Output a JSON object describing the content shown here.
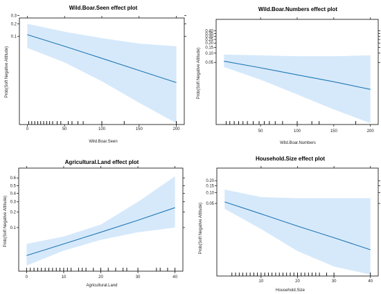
{
  "chart_data": [
    {
      "type": "line",
      "title": "Wild.Boar.Seen effect plot",
      "xlabel": "Wild.Boar.Seen",
      "ylabel": "Prob(Soft Negative Attitude)",
      "xlim": [
        -5,
        205
      ],
      "x_ticks": [
        0,
        50,
        100,
        150,
        200
      ],
      "y_scale": "logit",
      "ylim": [
        0.0004,
        0.25
      ],
      "y_ticks": [
        0.1,
        0.2,
        0.3
      ],
      "y_tick_labels": [
        "0.1",
        "0.2",
        "0.3"
      ],
      "series": [
        {
          "x": [
            0,
            50,
            100,
            150,
            200
          ],
          "y": [
            0.11,
            0.055,
            0.026,
            0.012,
            0.0055
          ],
          "lower": [
            0.05,
            0.02,
            0.006,
            0.0015,
            0.0004
          ],
          "upper": [
            0.2,
            0.13,
            0.09,
            0.065,
            0.055
          ]
        }
      ],
      "rug": [
        2,
        6,
        10,
        14,
        18,
        22,
        26,
        30,
        34,
        40,
        45,
        55,
        60,
        68,
        75,
        100,
        130,
        200
      ],
      "colors": {
        "line": "#1f77b4",
        "band": "#d6e9fb"
      }
    },
    {
      "type": "line",
      "title": "Wild.Boar.Numbers effect plot",
      "xlabel": "Wild.Boar.Numbers",
      "ylabel": "Prob(Soft Negative Attitude)",
      "xlim": [
        -5,
        205
      ],
      "x_ticks": [
        50,
        100,
        150,
        200
      ],
      "y_scale": "logit",
      "ylim": [
        0.0004,
        0.6
      ],
      "y_ticks": [
        0.05,
        0.1,
        0.15,
        0.2,
        0.25,
        0.3,
        0.35,
        0.4
      ],
      "y_tick_labels": [
        "0.05",
        "0.10",
        "0.15",
        "0.20",
        "0.25",
        "0.30",
        "0.35",
        "0.40"
      ],
      "series": [
        {
          "x": [
            0,
            50,
            100,
            150,
            200
          ],
          "y": [
            0.055,
            0.033,
            0.019,
            0.011,
            0.006
          ],
          "lower": [
            0.035,
            0.013,
            0.004,
            0.0012,
            0.0004
          ],
          "upper": [
            0.09,
            0.085,
            0.08,
            0.08,
            0.085
          ]
        }
      ],
      "rug": [
        3,
        8,
        14,
        20,
        26,
        32,
        40,
        48,
        55,
        62,
        70,
        80,
        100,
        120,
        130,
        180
      ],
      "colors": {
        "line": "#1f77b4",
        "band": "#d6e9fb"
      }
    },
    {
      "type": "line",
      "title": "Agricultural.Land effect plot",
      "xlabel": "Agricultural.Land",
      "ylabel": "Prob(Soft Negative Attitude)",
      "xlim": [
        -1,
        41
      ],
      "x_ticks": [
        0,
        10,
        20,
        30,
        40
      ],
      "y_scale": "logit",
      "ylim": [
        0.012,
        0.7
      ],
      "y_ticks": [
        0.1,
        0.2,
        0.3,
        0.4,
        0.5,
        0.6
      ],
      "y_tick_labels": [
        "0.1",
        "0.2",
        "0.3",
        "0.4",
        "0.5",
        "0.6"
      ],
      "series": [
        {
          "x": [
            0,
            10,
            20,
            30,
            40
          ],
          "y": [
            0.025,
            0.045,
            0.08,
            0.14,
            0.24
          ],
          "lower": [
            0.015,
            0.032,
            0.055,
            0.08,
            0.1
          ],
          "upper": [
            0.045,
            0.065,
            0.115,
            0.3,
            0.62
          ]
        }
      ],
      "rug": [
        0,
        1,
        2,
        3,
        4,
        5,
        6,
        7,
        8,
        9,
        10,
        11,
        12,
        14,
        15,
        16,
        18,
        20,
        22,
        24,
        26,
        27,
        30,
        35,
        36,
        38,
        40
      ],
      "colors": {
        "line": "#1f77b4",
        "band": "#d6e9fb"
      }
    },
    {
      "type": "line",
      "title": "Household.Size effect plot",
      "xlabel": "Household.Size",
      "ylabel": "Prob(Soft Negative Attitude)",
      "xlim": [
        -1,
        41
      ],
      "x_ticks": [
        10,
        20,
        30,
        40
      ],
      "y_scale": "logit",
      "ylim": [
        0.0004,
        0.35
      ],
      "y_ticks": [
        0.05,
        0.1,
        0.15,
        0.2
      ],
      "y_tick_labels": [
        "0.05",
        "0.10",
        "0.15",
        "0.20"
      ],
      "series": [
        {
          "x": [
            0,
            10,
            20,
            30,
            40
          ],
          "y": [
            0.055,
            0.025,
            0.011,
            0.005,
            0.0022
          ],
          "lower": [
            0.035,
            0.009,
            0.002,
            0.0007,
            0.0004
          ],
          "upper": [
            0.12,
            0.075,
            0.07,
            0.07,
            0.07
          ]
        }
      ],
      "rug": [
        2,
        3,
        4,
        5,
        6,
        7,
        8,
        9,
        10,
        11,
        12,
        13,
        14,
        15,
        16,
        17,
        18,
        19,
        20,
        21,
        22,
        23,
        24,
        25,
        26,
        28,
        30,
        40
      ],
      "colors": {
        "line": "#1f77b4",
        "band": "#d6e9fb"
      }
    }
  ]
}
